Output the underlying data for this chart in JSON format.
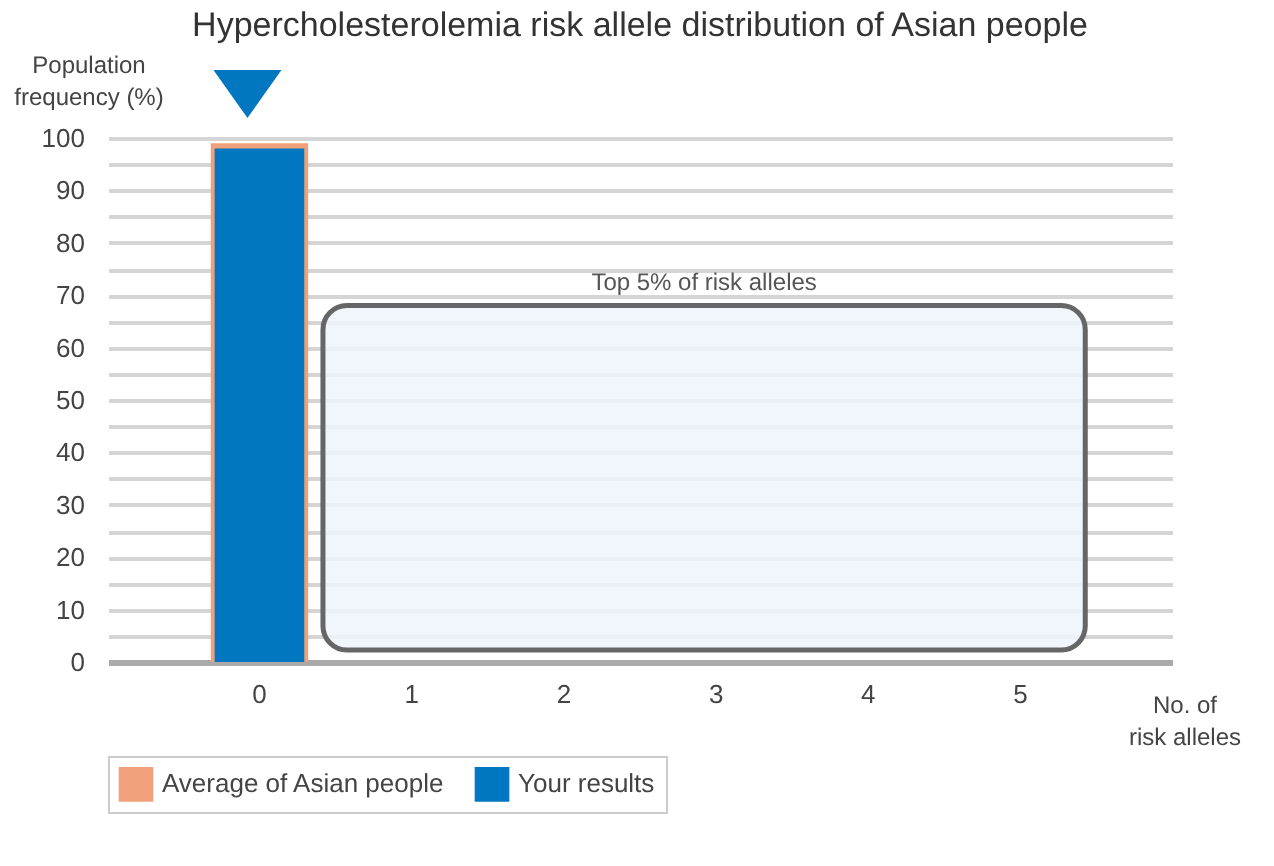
{
  "chart_data": {
    "type": "bar",
    "title": "Hypercholesterolemia risk allele distribution of Asian people",
    "xlabel": "No. of\nrisk alleles",
    "ylabel": "Population\nfrequency (%)",
    "categories": [
      "0",
      "1",
      "2",
      "3",
      "4",
      "5"
    ],
    "series": [
      {
        "name": "Average of Asian people",
        "color": "#f0a07a",
        "values": [
          99,
          0,
          0,
          0,
          0,
          0
        ]
      },
      {
        "name": "Your results",
        "color": "#0077c0",
        "values": [
          98,
          0,
          0,
          0,
          0,
          0
        ]
      }
    ],
    "ylim": [
      0,
      100
    ],
    "yticks": [
      0,
      {
        "value": 5,
        "label": null
      },
      10,
      {
        "value": 15,
        "label": null
      },
      20,
      {
        "value": 25,
        "label": null
      },
      30,
      {
        "value": 35,
        "label": null
      },
      40,
      {
        "value": 45,
        "label": null
      },
      50,
      {
        "value": 55,
        "label": null
      },
      60,
      {
        "value": 65,
        "label": null
      },
      70,
      {
        "value": 75,
        "label": null
      },
      80,
      {
        "value": 85,
        "label": null
      },
      90,
      {
        "value": 95,
        "label": null
      },
      100
    ],
    "annotations": [
      "Top 5% of risk alleles"
    ],
    "grid": "y",
    "legend": "bottom"
  }
}
